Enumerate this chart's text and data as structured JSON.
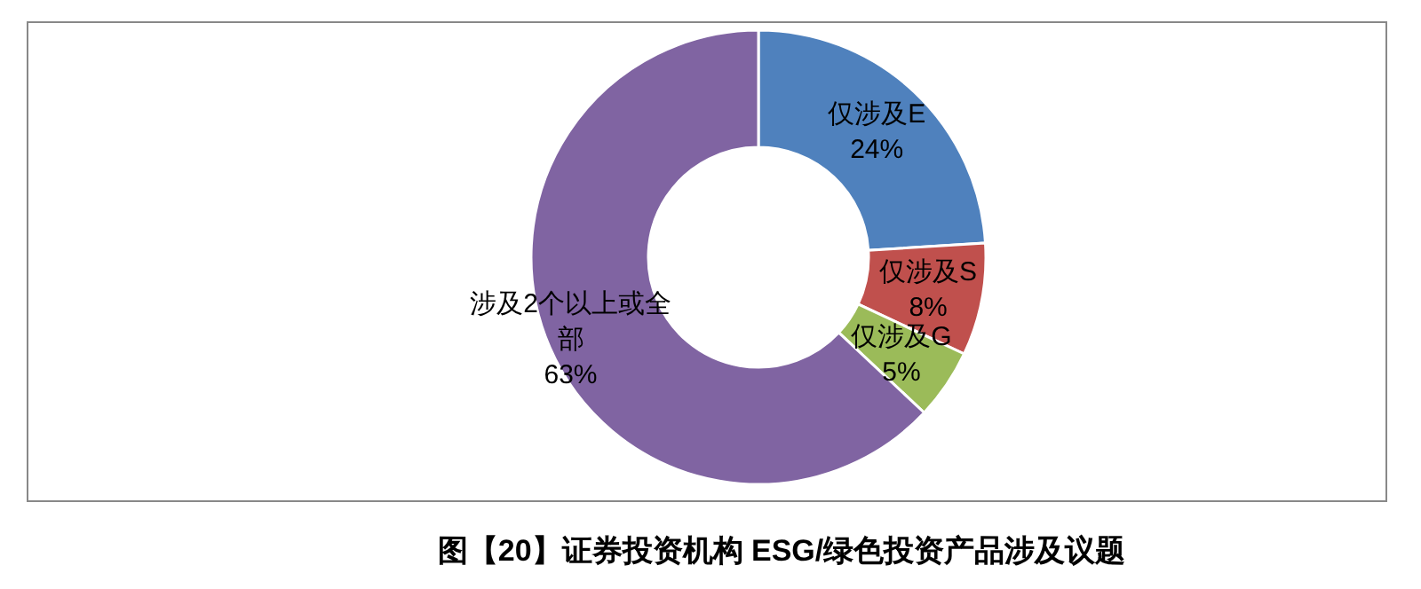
{
  "chart_data": {
    "type": "donut",
    "title": "图【20】证券投资机构 ESG/绿色投资产品涉及议题",
    "categories": [
      "仅涉及E",
      "仅涉及S",
      "仅涉及G",
      "涉及2个以上或全部"
    ],
    "values": [
      24,
      8,
      5,
      63
    ],
    "value_labels": [
      "24%",
      "8%",
      "5%",
      "63%"
    ],
    "colors": [
      "#4f81bd",
      "#c0504d",
      "#9bbb59",
      "#8064a2"
    ],
    "legend": false
  }
}
